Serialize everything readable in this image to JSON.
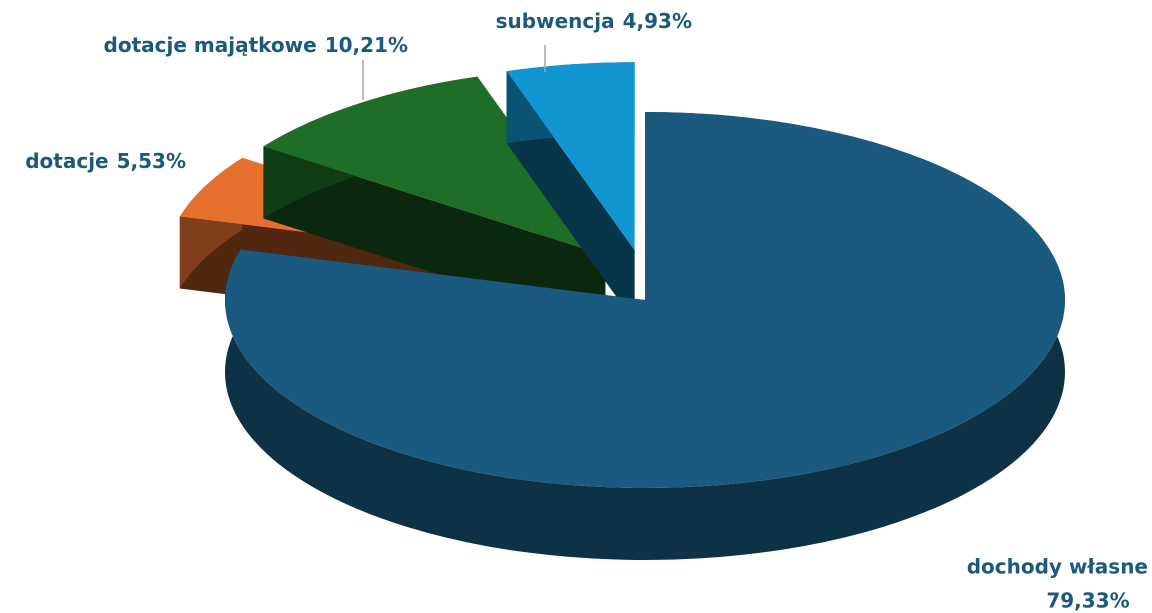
{
  "chart_data": {
    "type": "pie",
    "categories": [
      "dochody własne",
      "dotacje",
      "dotacje majątkowe",
      "subwencja"
    ],
    "values": [
      79.33,
      5.53,
      10.21,
      4.93
    ],
    "value_labels": [
      "79,33%",
      "5,53%",
      "10,21%",
      "4,93%"
    ],
    "colors": [
      "#1a5a7e",
      "#e8702f",
      "#1e6e27",
      "#1196d1"
    ]
  }
}
